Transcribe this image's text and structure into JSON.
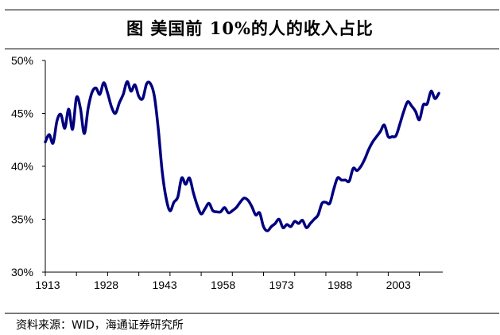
{
  "title": "图  美国前 10%的人的收入占比",
  "source": "资料来源：WID，海通证券研究所",
  "chart_data": {
    "type": "line",
    "title": "图  美国前 10%的人的收入占比",
    "xlabel": "",
    "ylabel": "",
    "ylim": [
      30,
      50
    ],
    "xlim": [
      1913,
      2015
    ],
    "yticks": [
      "30%",
      "35%",
      "40%",
      "45%",
      "50%"
    ],
    "ytick_values": [
      30,
      35,
      40,
      45,
      50
    ],
    "xticks": [
      "1913",
      "1928",
      "1943",
      "1958",
      "1973",
      "1988",
      "2003"
    ],
    "grid": false,
    "legend": "none",
    "line_color": "#000080",
    "x": [
      1913,
      1914,
      1915,
      1916,
      1917,
      1918,
      1919,
      1920,
      1921,
      1922,
      1923,
      1924,
      1925,
      1926,
      1927,
      1928,
      1929,
      1930,
      1931,
      1932,
      1933,
      1934,
      1935,
      1936,
      1937,
      1938,
      1939,
      1940,
      1941,
      1942,
      1943,
      1944,
      1945,
      1946,
      1947,
      1948,
      1949,
      1950,
      1951,
      1952,
      1953,
      1954,
      1955,
      1956,
      1957,
      1958,
      1959,
      1960,
      1961,
      1962,
      1963,
      1964,
      1965,
      1966,
      1967,
      1968,
      1969,
      1970,
      1971,
      1972,
      1973,
      1974,
      1975,
      1976,
      1977,
      1978,
      1979,
      1980,
      1981,
      1982,
      1983,
      1984,
      1985,
      1986,
      1987,
      1988,
      1989,
      1990,
      1991,
      1992,
      1993,
      1994,
      1995,
      1996,
      1997,
      1998,
      1999,
      2000,
      2001,
      2002,
      2003,
      2004,
      2005,
      2006,
      2007,
      2008,
      2009,
      2010,
      2011,
      2012,
      2013,
      2014
    ],
    "values": [
      42.3,
      43.0,
      42.2,
      44.3,
      44.9,
      43.6,
      45.4,
      43.5,
      46.5,
      45.5,
      43.1,
      45.5,
      47.0,
      47.4,
      46.8,
      47.9,
      46.9,
      45.6,
      45.0,
      46.0,
      46.8,
      48.0,
      47.1,
      47.7,
      46.6,
      46.4,
      47.8,
      47.8,
      46.6,
      43.5,
      39.5,
      37.0,
      35.8,
      36.6,
      37.1,
      38.9,
      38.3,
      38.9,
      37.5,
      36.3,
      35.5,
      36.0,
      36.5,
      35.8,
      35.7,
      35.7,
      36.1,
      35.6,
      35.8,
      36.1,
      36.6,
      37.0,
      36.8,
      36.2,
      35.4,
      35.6,
      34.3,
      33.9,
      34.3,
      34.6,
      35.0,
      34.2,
      34.5,
      34.3,
      34.8,
      34.6,
      34.9,
      34.2,
      34.6,
      35.0,
      35.4,
      36.5,
      36.6,
      36.5,
      37.8,
      38.9,
      38.7,
      38.7,
      38.6,
      39.8,
      39.6,
      40.0,
      40.7,
      41.6,
      42.3,
      42.8,
      43.3,
      43.9,
      42.8,
      42.8,
      42.9,
      44.0,
      45.2,
      46.1,
      45.7,
      45.2,
      44.4,
      45.8,
      45.9,
      47.1,
      46.4,
      46.9
    ]
  }
}
